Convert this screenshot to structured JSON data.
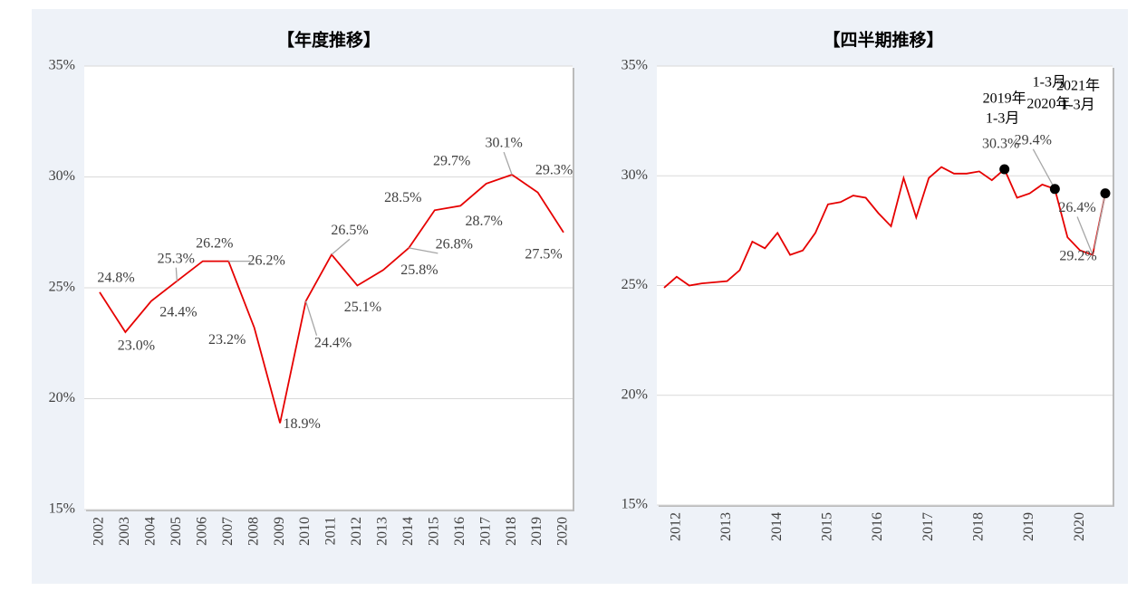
{
  "chart_data": [
    {
      "type": "line",
      "title": "【年度推移】",
      "categories": [
        "2002",
        "2003",
        "2004",
        "2005",
        "2006",
        "2007",
        "2008",
        "2009",
        "2010",
        "2011",
        "2012",
        "2013",
        "2014",
        "2015",
        "2016",
        "2017",
        "2018",
        "2019",
        "2020"
      ],
      "series": [
        {
          "name": null,
          "color": "#e60000",
          "values": [
            24.8,
            23.0,
            24.4,
            25.3,
            26.2,
            26.2,
            23.2,
            18.9,
            24.4,
            26.5,
            25.1,
            25.8,
            26.8,
            28.5,
            28.7,
            29.7,
            30.1,
            29.3,
            27.5
          ],
          "value_labels": [
            "24.8%",
            "23.0%",
            "24.4%",
            "25.3%",
            "26.2%",
            "26.2%",
            "23.2%",
            "18.9%",
            "24.4%",
            "26.5%",
            "25.1%",
            "25.8%",
            "26.8%",
            "28.5%",
            "28.7%",
            "29.7%",
            "30.1%",
            "29.3%",
            "27.5%"
          ]
        }
      ],
      "ylim": [
        15,
        35
      ],
      "yticks": [
        {
          "value": 15,
          "label": "15%"
        },
        {
          "value": 20,
          "label": "20%"
        },
        {
          "value": 25,
          "label": "25%"
        },
        {
          "value": 30,
          "label": "30%"
        },
        {
          "value": 35,
          "label": "35%"
        }
      ],
      "grid": true
    },
    {
      "type": "line",
      "title": "【四半期推移】",
      "categories": [
        null,
        "2012",
        null,
        null,
        null,
        "2013",
        null,
        null,
        null,
        "2014",
        null,
        null,
        null,
        "2015",
        null,
        null,
        null,
        "2016",
        null,
        null,
        null,
        "2017",
        null,
        null,
        null,
        "2018",
        null,
        null,
        null,
        "2019",
        null,
        null,
        null,
        "2020",
        null,
        null
      ],
      "series": [
        {
          "name": null,
          "color": "#e60000",
          "values": [
            24.9,
            25.4,
            25.0,
            25.1,
            25.15,
            25.2,
            25.7,
            27.0,
            26.7,
            27.4,
            26.4,
            26.6,
            27.4,
            28.7,
            28.8,
            29.1,
            29.0,
            28.3,
            27.7,
            29.9,
            28.1,
            29.9,
            30.4,
            30.1,
            30.1,
            30.2,
            29.8,
            30.3,
            29.0,
            29.2,
            29.6,
            29.4,
            27.2,
            26.6,
            26.4,
            29.2
          ],
          "value_labels": [
            null,
            null,
            null,
            null,
            null,
            null,
            null,
            null,
            null,
            null,
            null,
            null,
            null,
            null,
            null,
            null,
            null,
            null,
            null,
            null,
            null,
            null,
            null,
            null,
            null,
            null,
            null,
            "30.3%",
            null,
            null,
            null,
            "29.4%",
            null,
            null,
            "26.4%",
            "29.2%"
          ]
        }
      ],
      "markers": [
        27,
        31,
        35
      ],
      "annotations": [
        {
          "index": 27,
          "lines": [
            "2019年",
            "1-3月"
          ]
        },
        {
          "index": 31,
          "lines": [
            "2020年",
            "1-3月"
          ]
        },
        {
          "index": 35,
          "lines": [
            "2021年",
            "1-3月"
          ]
        }
      ],
      "ylim": [
        15,
        35
      ],
      "yticks": [
        {
          "value": 15,
          "label": "15%"
        },
        {
          "value": 20,
          "label": "20%"
        },
        {
          "value": 25,
          "label": "25%"
        },
        {
          "value": 30,
          "label": "30%"
        },
        {
          "value": 35,
          "label": "35%"
        }
      ],
      "grid": true
    }
  ]
}
